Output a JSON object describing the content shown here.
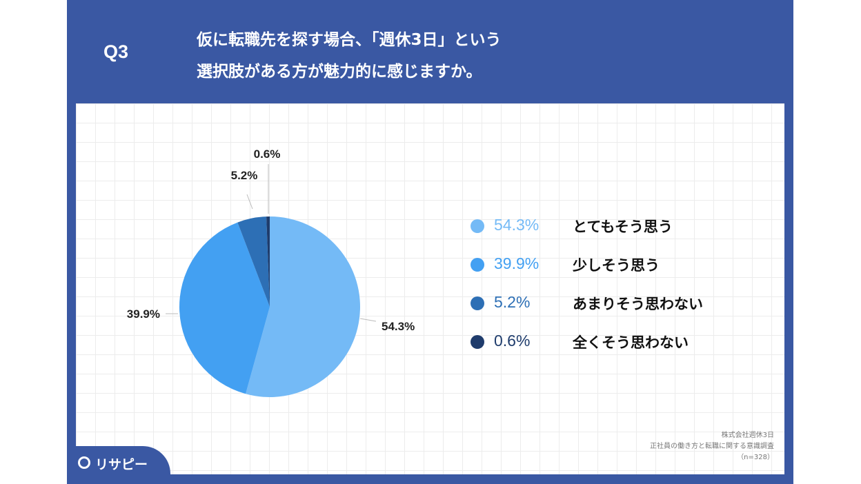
{
  "question": {
    "label": "Q3",
    "line1": "仮に転職先を探す場合、「週休3日」という",
    "line2": "選択肢がある方が魅力的に感じますか。"
  },
  "colors": {
    "background": "#3a58a3",
    "slice1": "#74baf6",
    "slice2": "#43a0f2",
    "slice3": "#2d6fb5",
    "slice4": "#1f3c6c"
  },
  "chart_data": {
    "type": "pie",
    "categories": [
      "とてもそう思う",
      "少しそう思う",
      "あまりそう思わない",
      "全くそう思わない"
    ],
    "values": [
      54.3,
      39.9,
      5.2,
      0.6
    ],
    "labels": [
      "54.3%",
      "39.9%",
      "5.2%",
      "0.6%"
    ],
    "legend_placement": "right"
  },
  "source": {
    "line1": "株式会社週休3日",
    "line2": "正社員の働き方と転職に関する意識調査",
    "line3": "（n=328）"
  },
  "logo": {
    "text": "リサピー",
    "icon": "pin-icon"
  }
}
